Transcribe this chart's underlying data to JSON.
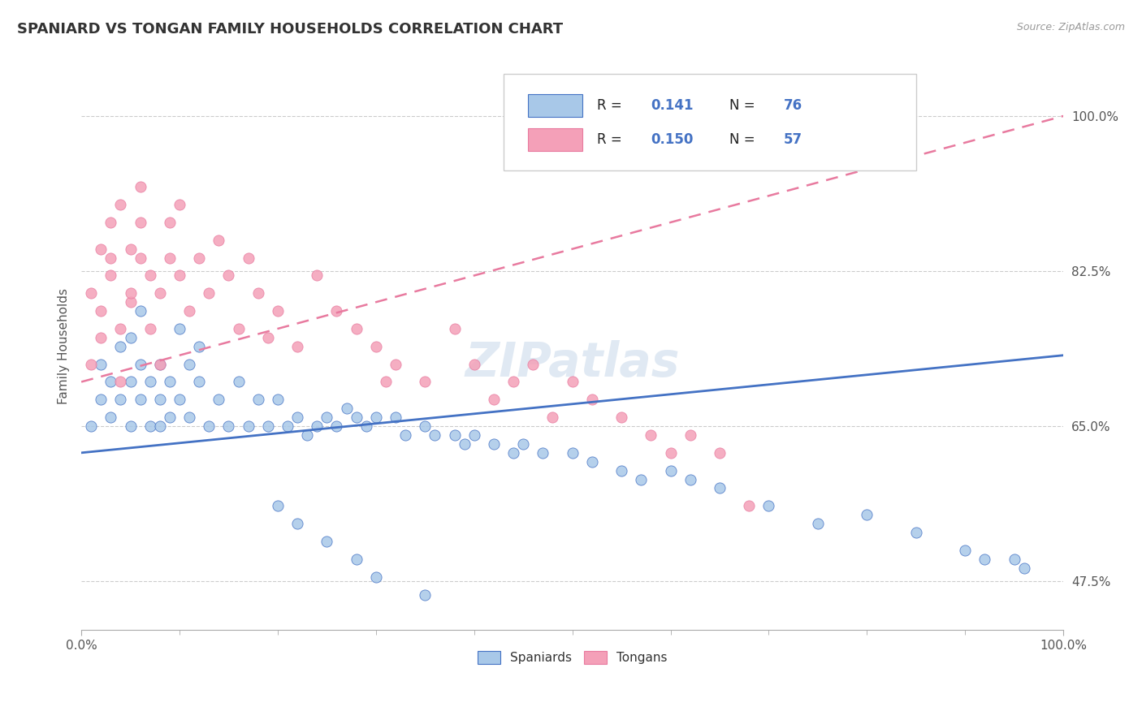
{
  "title": "SPANIARD VS TONGAN FAMILY HOUSEHOLDS CORRELATION CHART",
  "source_text": "Source: ZipAtlas.com",
  "xlabel": "",
  "ylabel": "Family Households",
  "xlim": [
    0.0,
    100.0
  ],
  "ylim": [
    42.0,
    106.0
  ],
  "yticks": [
    47.5,
    65.0,
    82.5,
    100.0
  ],
  "ytick_labels": [
    "47.5%",
    "65.0%",
    "82.5%",
    "100.0%"
  ],
  "xtick_labels": [
    "0.0%",
    "100.0%"
  ],
  "spaniards_color": "#a8c8e8",
  "tongans_color": "#f4a0b8",
  "spaniard_line_color": "#4472c4",
  "tongan_line_color": "#e87a9f",
  "r_spaniard": 0.141,
  "n_spaniard": 76,
  "r_tongan": 0.15,
  "n_tongan": 57,
  "watermark": "ZIPatlas",
  "spaniard_line_start": 62.0,
  "spaniard_line_end": 73.0,
  "tongan_line_start": 70.0,
  "tongan_line_end": 100.0,
  "spaniards_x": [
    1,
    2,
    2,
    3,
    3,
    4,
    4,
    5,
    5,
    5,
    6,
    6,
    6,
    7,
    7,
    8,
    8,
    8,
    9,
    9,
    10,
    10,
    11,
    11,
    12,
    12,
    13,
    14,
    15,
    16,
    17,
    18,
    19,
    20,
    21,
    22,
    23,
    24,
    25,
    26,
    27,
    28,
    29,
    30,
    32,
    33,
    35,
    36,
    38,
    39,
    40,
    42,
    44,
    45,
    47,
    50,
    52,
    55,
    57,
    60,
    62,
    65,
    70,
    75,
    80,
    85,
    90,
    92,
    95,
    96,
    20,
    22,
    25,
    28,
    30,
    35
  ],
  "spaniards_y": [
    65,
    68,
    72,
    70,
    66,
    74,
    68,
    75,
    70,
    65,
    68,
    72,
    78,
    70,
    65,
    68,
    65,
    72,
    66,
    70,
    76,
    68,
    72,
    66,
    70,
    74,
    65,
    68,
    65,
    70,
    65,
    68,
    65,
    68,
    65,
    66,
    64,
    65,
    66,
    65,
    67,
    66,
    65,
    66,
    66,
    64,
    65,
    64,
    64,
    63,
    64,
    63,
    62,
    63,
    62,
    62,
    61,
    60,
    59,
    60,
    59,
    58,
    56,
    54,
    55,
    53,
    51,
    50,
    50,
    49,
    56,
    54,
    52,
    50,
    48,
    46
  ],
  "tongans_x": [
    1,
    1,
    2,
    2,
    2,
    3,
    3,
    3,
    4,
    4,
    4,
    5,
    5,
    5,
    6,
    6,
    6,
    7,
    7,
    8,
    8,
    9,
    9,
    10,
    10,
    11,
    12,
    13,
    14,
    15,
    16,
    17,
    18,
    19,
    20,
    22,
    24,
    26,
    28,
    30,
    31,
    32,
    35,
    38,
    40,
    42,
    44,
    46,
    48,
    50,
    52,
    55,
    58,
    60,
    62,
    65,
    68
  ],
  "tongans_y": [
    72,
    80,
    78,
    85,
    75,
    82,
    88,
    84,
    70,
    76,
    90,
    79,
    85,
    80,
    88,
    92,
    84,
    76,
    82,
    80,
    72,
    84,
    88,
    82,
    90,
    78,
    84,
    80,
    86,
    82,
    76,
    84,
    80,
    75,
    78,
    74,
    82,
    78,
    76,
    74,
    70,
    72,
    70,
    76,
    72,
    68,
    70,
    72,
    66,
    70,
    68,
    66,
    64,
    62,
    64,
    62,
    56
  ]
}
